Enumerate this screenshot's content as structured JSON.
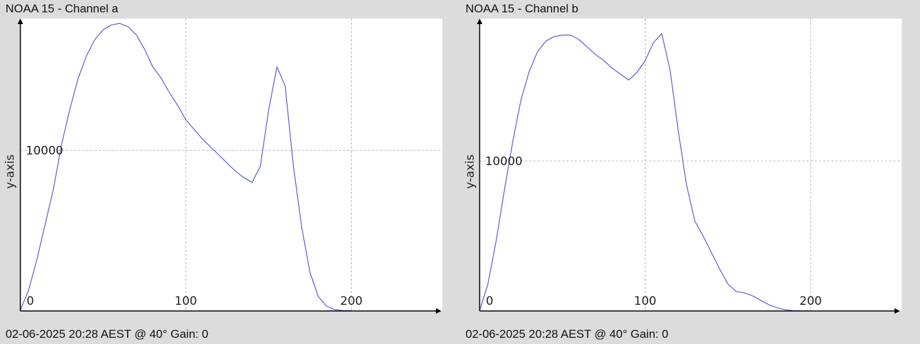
{
  "chart_data": [
    {
      "type": "line",
      "title": "NOAA 15 - Channel a",
      "footer": "02-06-2025 20:28 AEST @ 40° Gain: 0",
      "xlabel": "",
      "ylabel": "y-axis",
      "xlim": [
        0,
        255
      ],
      "ylim": [
        0,
        18200
      ],
      "x_ticks": [
        0,
        100,
        200
      ],
      "y_ticks": [
        10000
      ],
      "grid": true,
      "line_color": "#5a5ad6",
      "series": [
        {
          "x": [
            0,
            5,
            10,
            15,
            20,
            25,
            30,
            35,
            40,
            45,
            50,
            55,
            60,
            65,
            70,
            75,
            80,
            85,
            90,
            95,
            100,
            105,
            110,
            115,
            120,
            125,
            130,
            135,
            140,
            145,
            150,
            155,
            160,
            165,
            170,
            175,
            180,
            185,
            190,
            195,
            200
          ],
          "y": [
            50,
            1300,
            3200,
            5400,
            7600,
            10400,
            12600,
            14500,
            15900,
            16900,
            17500,
            17800,
            17900,
            17700,
            17200,
            16300,
            15200,
            14500,
            13600,
            12800,
            11900,
            11300,
            10700,
            10200,
            9700,
            9200,
            8700,
            8300,
            8000,
            9000,
            12500,
            15200,
            14000,
            9000,
            5200,
            2400,
            900,
            300,
            80,
            30,
            20
          ]
        }
      ]
    },
    {
      "type": "line",
      "title": "NOAA 15 - Channel b",
      "footer": "02-06-2025 20:28 AEST @ 40° Gain: 0",
      "xlabel": "",
      "ylabel": "y-axis",
      "xlim": [
        0,
        255
      ],
      "ylim": [
        0,
        19500
      ],
      "x_ticks": [
        0,
        100,
        200
      ],
      "y_ticks": [
        10000
      ],
      "grid": true,
      "line_color": "#5a5ad6",
      "series": [
        {
          "x": [
            0,
            5,
            10,
            15,
            20,
            25,
            30,
            35,
            40,
            45,
            50,
            55,
            60,
            65,
            70,
            75,
            80,
            85,
            90,
            95,
            100,
            105,
            110,
            115,
            120,
            125,
            130,
            135,
            140,
            145,
            150,
            155,
            160,
            165,
            170,
            175,
            180,
            185,
            190,
            195,
            200
          ],
          "y": [
            30,
            1800,
            4700,
            8100,
            11300,
            14100,
            16000,
            17300,
            18000,
            18300,
            18400,
            18400,
            18100,
            17600,
            17100,
            16700,
            16200,
            15800,
            15400,
            15900,
            16700,
            17900,
            18500,
            16100,
            12000,
            8400,
            6000,
            5000,
            3900,
            2800,
            1800,
            1300,
            1200,
            1000,
            700,
            400,
            200,
            80,
            20,
            0,
            0
          ]
        }
      ]
    }
  ]
}
